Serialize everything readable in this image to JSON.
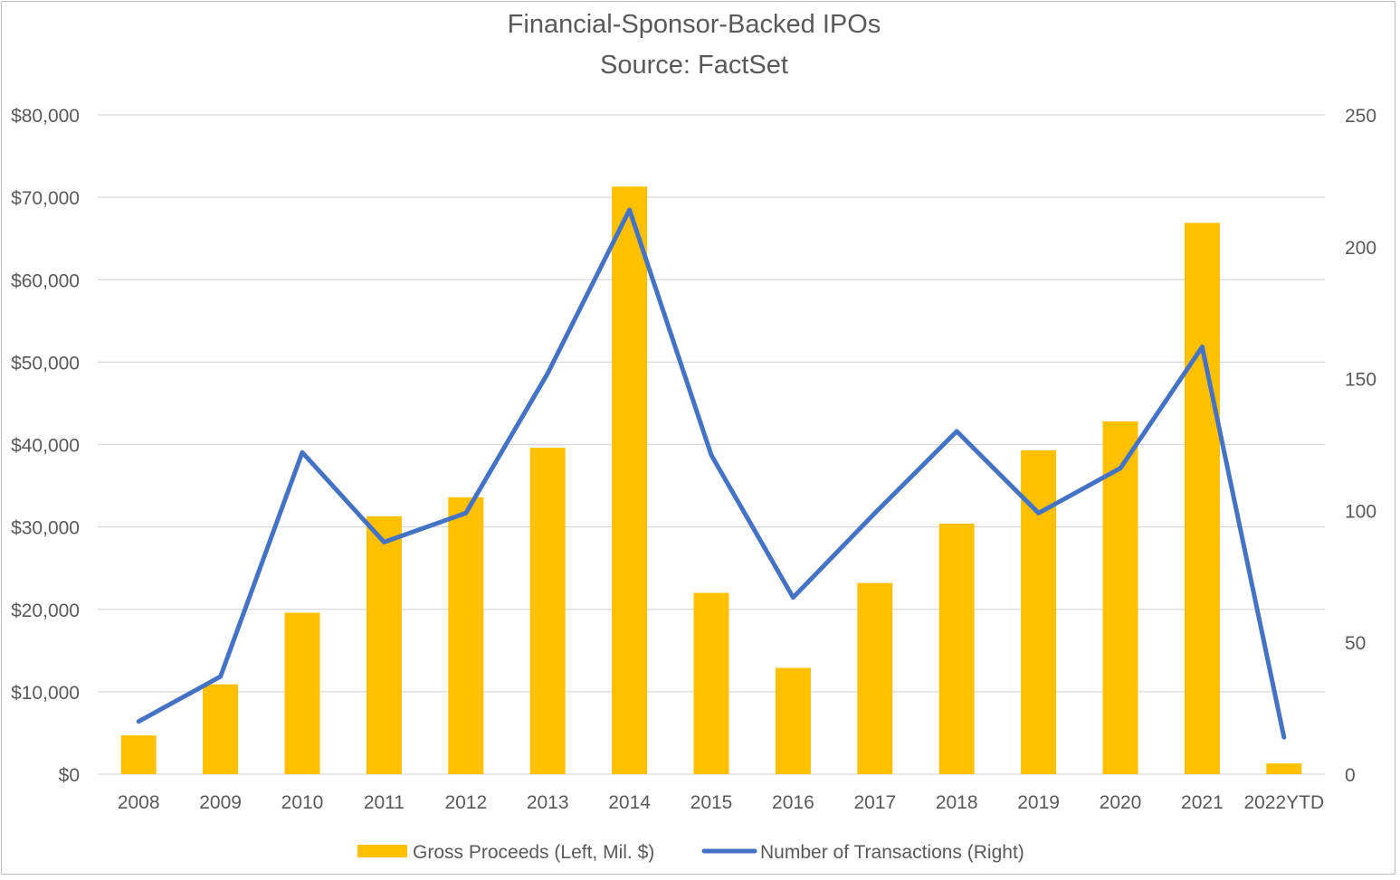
{
  "chart_data": {
    "type": "bar",
    "title": "Financial-Sponsor-Backed IPOs",
    "subtitle": "Source: FactSet",
    "categories": [
      "2008",
      "2009",
      "2010",
      "2011",
      "2012",
      "2013",
      "2014",
      "2015",
      "2016",
      "2017",
      "2018",
      "2019",
      "2020",
      "2021",
      "2022YTD"
    ],
    "left_axis": {
      "min": 0,
      "max": 80000,
      "step": 10000,
      "tick_labels": [
        "$0",
        "$10,000",
        "$20,000",
        "$30,000",
        "$40,000",
        "$50,000",
        "$60,000",
        "$70,000",
        "$80,000"
      ]
    },
    "right_axis": {
      "min": 0,
      "max": 250,
      "step": 50,
      "tick_labels": [
        "0",
        "50",
        "100",
        "150",
        "200",
        "250"
      ]
    },
    "grid": true,
    "legend_position": "bottom",
    "series": [
      {
        "name": "Gross Proceeds (Left, Mil. $)",
        "kind": "bar",
        "axis": "left",
        "color": "#FFC000",
        "values": [
          4700,
          10900,
          19600,
          31300,
          33600,
          39600,
          71300,
          22000,
          12900,
          23200,
          30400,
          39300,
          42800,
          66900,
          1300
        ]
      },
      {
        "name": "Number of Transactions (Right)",
        "kind": "line",
        "axis": "right",
        "color": "#4472C4",
        "values": [
          20,
          37,
          122,
          88,
          99,
          152,
          214,
          121,
          67,
          99,
          130,
          99,
          116,
          162,
          14
        ]
      }
    ]
  }
}
